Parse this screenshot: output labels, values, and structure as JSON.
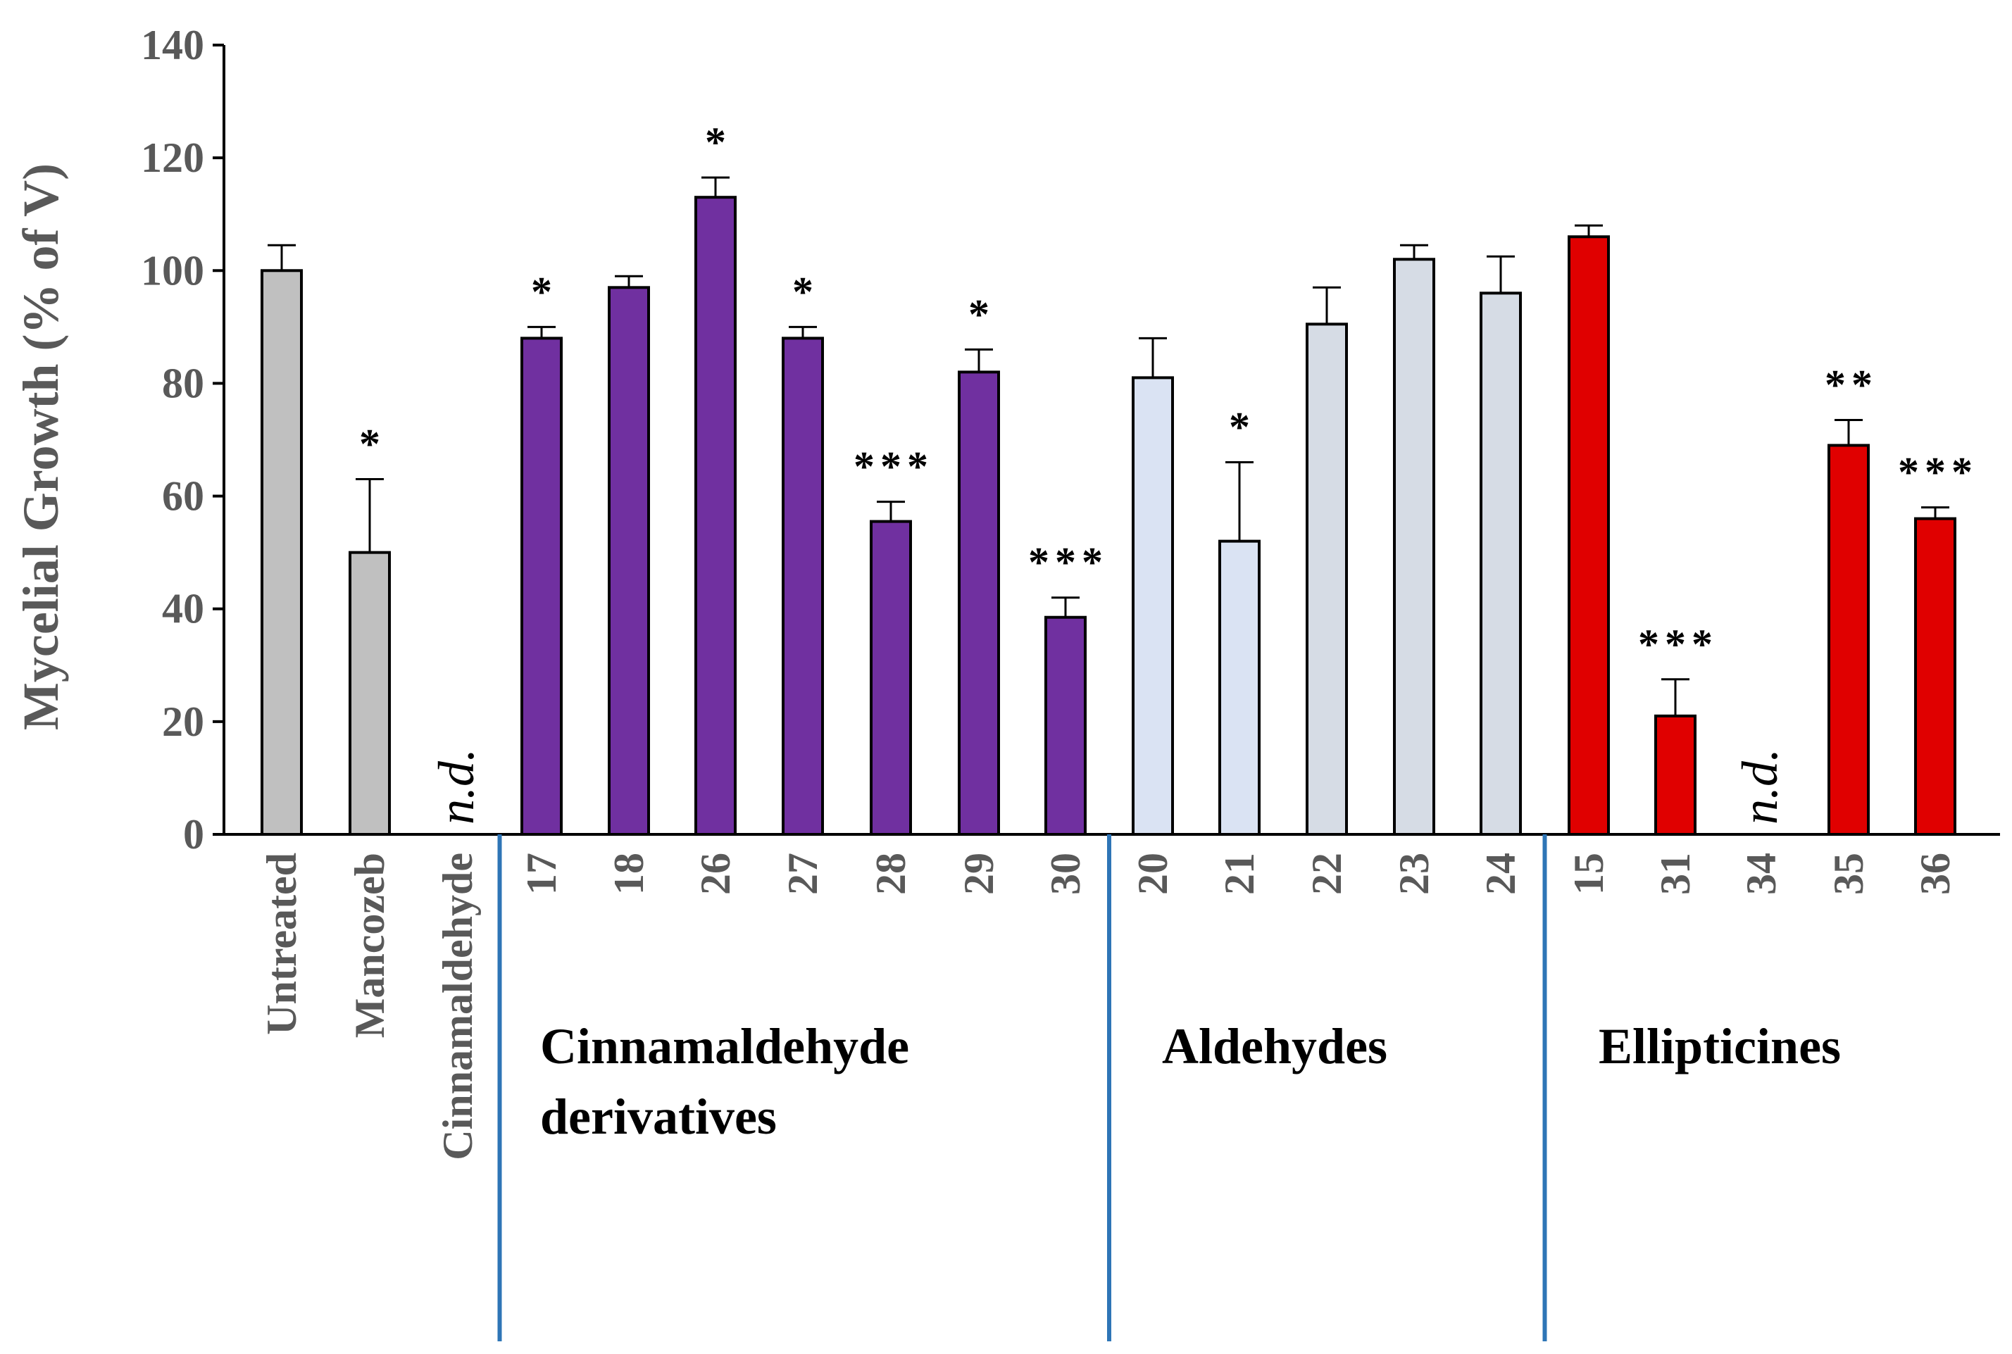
{
  "chart_data": {
    "type": "bar",
    "title": "",
    "xlabel": "",
    "ylabel": "Mycelial Growth (% of V)",
    "ylim": [
      0,
      140
    ],
    "yticks": [
      0,
      20,
      40,
      60,
      80,
      100,
      120,
      140
    ],
    "grid": false,
    "legend": "none",
    "categories": [
      "Untreated",
      "Mancozeb",
      "Cinnamaldehyde",
      "17",
      "18",
      "26",
      "27",
      "28",
      "29",
      "30",
      "20",
      "21",
      "22",
      "23",
      "24",
      "15",
      "31",
      "34",
      "35",
      "36"
    ],
    "values": [
      100,
      50,
      null,
      88,
      97,
      113,
      88,
      55.5,
      82,
      38.5,
      81,
      52,
      90.5,
      102,
      96,
      106,
      21,
      null,
      69,
      56
    ],
    "errors": [
      4.5,
      13,
      null,
      2,
      2,
      3.5,
      2,
      3.5,
      4,
      3.5,
      7,
      14,
      6.5,
      2.5,
      6.5,
      2,
      6.5,
      null,
      4.5,
      2
    ],
    "significance": [
      "",
      "*",
      "",
      "*",
      "",
      "*",
      "*",
      "***",
      "*",
      "***",
      "",
      "*",
      "",
      "",
      "",
      "",
      "***",
      "",
      "**",
      "***"
    ],
    "not_determined_label": "n.d.",
    "bar_colors": [
      "#c0c0c0",
      "#c0c0c0",
      "#c0c0c0",
      "#7030a0",
      "#7030a0",
      "#7030a0",
      "#7030a0",
      "#7030a0",
      "#7030a0",
      "#7030a0",
      "#dae3f3",
      "#dae3f3",
      "#d6dce5",
      "#d6dce5",
      "#d6dce5",
      "#e00000",
      "#e00000",
      "#e00000",
      "#e00000",
      "#e00000"
    ],
    "groups": [
      {
        "name": "Cinnamaldehyde derivatives",
        "lines": [
          "Cinnamaldehyde",
          "derivatives"
        ],
        "start": 3,
        "end": 9
      },
      {
        "name": "Aldehydes",
        "lines": [
          "Aldehydes"
        ],
        "start": 10,
        "end": 14
      },
      {
        "name": "Ellipticines",
        "lines": [
          "Ellipticines"
        ],
        "start": 15,
        "end": 19
      }
    ],
    "separator_color": "#2e75b6"
  }
}
